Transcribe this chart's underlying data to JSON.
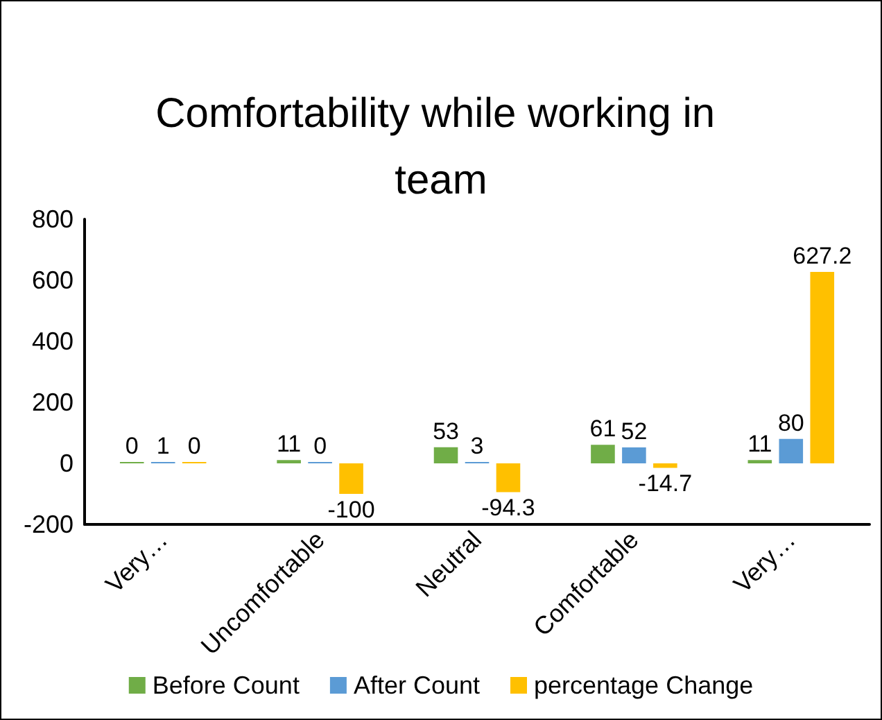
{
  "chart_data": {
    "type": "bar",
    "title": "Comfortability while working in team",
    "categories": [
      "Very…",
      "Uncomfortable",
      "Neutral",
      "Comfortable",
      "Very…"
    ],
    "series": [
      {
        "name": "Before Count",
        "color": "#70ad47",
        "values": [
          0,
          11,
          53,
          61,
          11
        ]
      },
      {
        "name": "After Count",
        "color": "#5b9bd5",
        "values": [
          1,
          0,
          3,
          52,
          80
        ]
      },
      {
        "name": "percentage Change",
        "color": "#ffc000",
        "values": [
          0,
          -100,
          -94.3,
          -14.7,
          627.2
        ]
      }
    ],
    "ylim": [
      -200,
      800
    ],
    "yticks": [
      -200,
      0,
      200,
      400,
      600,
      800
    ],
    "grid": false,
    "legend": "bottom",
    "data_labels": true
  }
}
